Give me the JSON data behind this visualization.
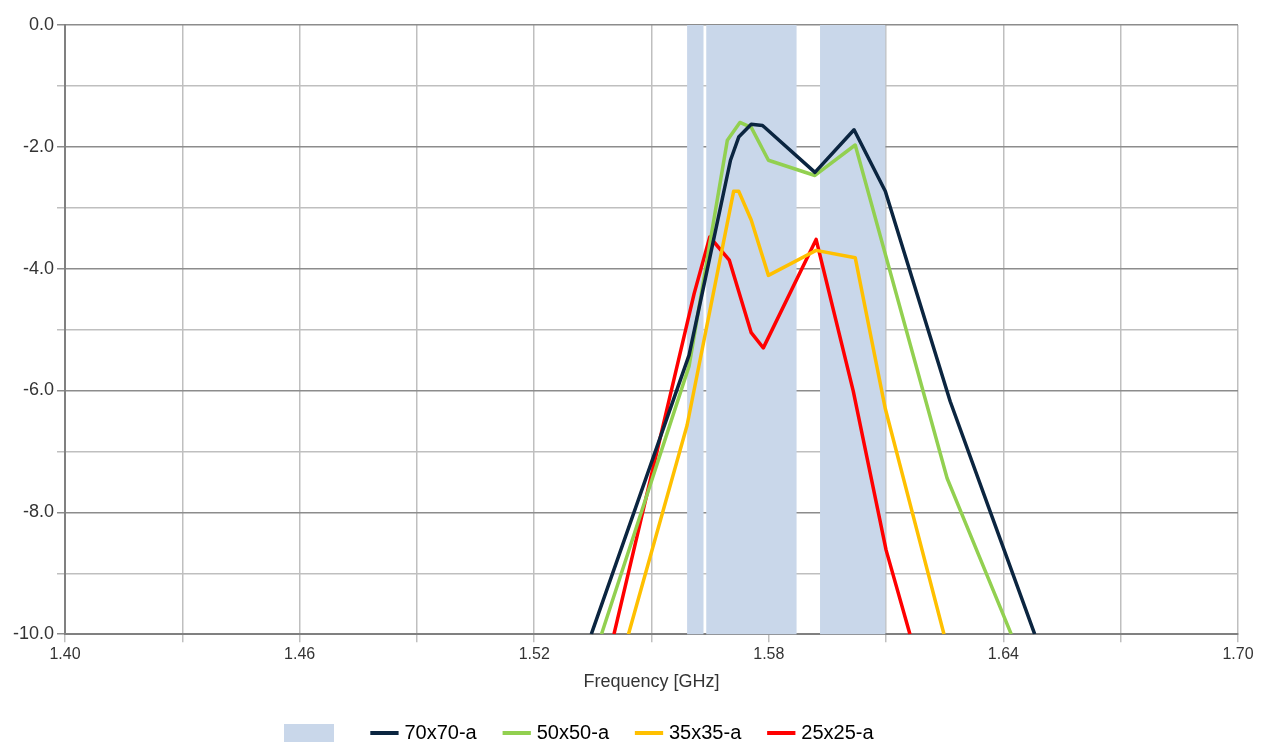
{
  "chart_data": {
    "type": "line",
    "xlabel": "Frequency [GHz]",
    "xlim": [
      1.4,
      1.7
    ],
    "xticks": [
      {
        "value": 1.4,
        "label": "1.40"
      },
      {
        "value": 1.43,
        "label": null
      },
      {
        "value": 1.46,
        "label": "1.46"
      },
      {
        "value": 1.49,
        "label": null
      },
      {
        "value": 1.52,
        "label": "1.52"
      },
      {
        "value": 1.55,
        "label": null
      },
      {
        "value": 1.58,
        "label": "1.58"
      },
      {
        "value": 1.61,
        "label": null
      },
      {
        "value": 1.64,
        "label": "1.64"
      },
      {
        "value": 1.67,
        "label": null
      },
      {
        "value": 1.7,
        "label": "1.70"
      }
    ],
    "ylim": [
      -10,
      0
    ],
    "yticks": [
      {
        "value": -10,
        "label": "-10.0"
      },
      {
        "value": -9,
        "label": null
      },
      {
        "value": -8,
        "label": "-8.0"
      },
      {
        "value": -7,
        "label": null
      },
      {
        "value": -6,
        "label": "-6.0"
      },
      {
        "value": -5,
        "label": null
      },
      {
        "value": -4,
        "label": "-4.0"
      },
      {
        "value": -3,
        "label": null
      },
      {
        "value": -2,
        "label": "-2.0"
      },
      {
        "value": -1,
        "label": null
      },
      {
        "value": 0,
        "label": "0.0"
      }
    ],
    "grid": true,
    "legend": "bottom",
    "marker": "none",
    "line_style": "solid",
    "bands": [
      {
        "axis": "x",
        "from": 1.5591,
        "to": 1.5633,
        "color": "#c9d7ea"
      },
      {
        "axis": "x",
        "from": 1.564,
        "to": 1.5871,
        "color": "#c9d7ea"
      },
      {
        "axis": "x",
        "from": 1.5931,
        "to": 1.6098,
        "color": "#c9d7ea"
      }
    ],
    "series": [
      {
        "name": "70x70-a",
        "color": "#0b2540",
        "x": [
          1.5346,
          1.5596,
          1.5702,
          1.5723,
          1.5755,
          1.5784,
          1.5918,
          1.6018,
          1.6098,
          1.6264,
          1.648
        ],
        "values": [
          -10,
          -5.42,
          -2.22,
          -1.84,
          -1.63,
          -1.65,
          -2.42,
          -1.72,
          -2.73,
          -6.18,
          -10
        ]
      },
      {
        "name": "50x50-a",
        "color": "#92d050",
        "x": [
          1.5372,
          1.5596,
          1.5694,
          1.5726,
          1.5755,
          1.5799,
          1.5918,
          1.6021,
          1.6256,
          1.642
        ],
        "values": [
          -10,
          -5.6,
          -1.89,
          -1.6,
          -1.68,
          -2.22,
          -2.47,
          -1.97,
          -7.44,
          -10
        ]
      },
      {
        "name": "35x35-a",
        "color": "#ffc000",
        "x": [
          1.5441,
          1.5591,
          1.571,
          1.5723,
          1.5755,
          1.5799,
          1.5921,
          1.6021,
          1.6098,
          1.6248
        ],
        "values": [
          -10,
          -6.57,
          -2.73,
          -2.73,
          -3.2,
          -4.11,
          -3.7,
          -3.82,
          -6.3,
          -10
        ]
      },
      {
        "name": "25x25-a",
        "color": "#ff0000",
        "x": [
          1.5404,
          1.5609,
          1.5649,
          1.5699,
          1.5755,
          1.5786,
          1.5921,
          1.6016,
          1.61,
          1.6161
        ],
        "values": [
          -10,
          -4.41,
          -3.48,
          -3.86,
          -5.05,
          -5.3,
          -3.52,
          -6.01,
          -8.62,
          -10
        ]
      }
    ]
  }
}
